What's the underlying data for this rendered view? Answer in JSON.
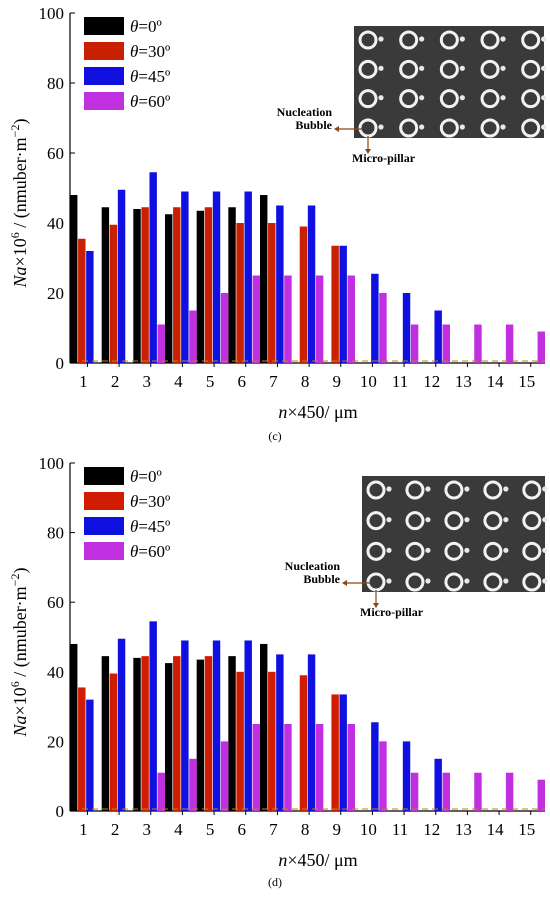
{
  "chart_data": [
    {
      "type": "bar",
      "panel_label": "(c)",
      "xlabel_var": "n",
      "xlabel_rest": "×450/ μm",
      "ylabel_var": "Na",
      "ylabel_rest": "×10",
      "ylabel_exp": "6",
      "ylabel_unit": " / (nmuber·m",
      "ylabel_unit_exp": "−2",
      "ylabel_close": ")",
      "ylim": [
        0,
        100
      ],
      "yticks": [
        0,
        20,
        40,
        60,
        80,
        100
      ],
      "categories": [
        "1",
        "2",
        "3",
        "4",
        "5",
        "6",
        "7",
        "8",
        "9",
        "10",
        "11",
        "12",
        "13",
        "14",
        "15"
      ],
      "series": [
        {
          "name": "θ=0º",
          "theta": "θ",
          "deg": "=0º",
          "color": "#000000",
          "values": [
            48,
            44.5,
            44,
            42.5,
            43.5,
            44.5,
            48,
            null,
            null,
            null,
            null,
            null,
            null,
            null,
            null
          ]
        },
        {
          "name": "θ=30º",
          "theta": "θ",
          "deg": "=30º",
          "color": "#c82000",
          "values": [
            35.5,
            39.5,
            44.5,
            44.5,
            44.5,
            40,
            40,
            39,
            33.5,
            null,
            null,
            null,
            null,
            null,
            null
          ]
        },
        {
          "name": "θ=45º",
          "theta": "θ",
          "deg": "=45º",
          "color": "#1010e0",
          "values": [
            32,
            49.5,
            54.5,
            49,
            49,
            49,
            45,
            45,
            33.5,
            25.5,
            20,
            15,
            null,
            null,
            null
          ]
        },
        {
          "name": "θ=60º",
          "theta": "θ",
          "deg": "=60º",
          "color": "#c030e0",
          "values": [
            null,
            null,
            11,
            15,
            20,
            25,
            25,
            25,
            25,
            20,
            11,
            11,
            11,
            11,
            9
          ]
        }
      ],
      "baseline_style": "dashed",
      "legend_position": "top-left",
      "inset": {
        "label_nucleation_1": "Nucleation",
        "label_nucleation_2": "Bubble",
        "label_pillar": "Micro-pillar"
      }
    },
    {
      "type": "bar",
      "panel_label": "(d)",
      "xlabel_var": "n",
      "xlabel_rest": "×450/ μm",
      "ylabel_var": "Na",
      "ylabel_rest": "×10",
      "ylabel_exp": "6",
      "ylabel_unit": " / (nmuber·m",
      "ylabel_unit_exp": "−2",
      "ylabel_close": ")",
      "ylim": [
        0,
        100
      ],
      "yticks": [
        0,
        20,
        40,
        60,
        80,
        100
      ],
      "categories": [
        "1",
        "2",
        "3",
        "4",
        "5",
        "6",
        "7",
        "8",
        "9",
        "10",
        "11",
        "12",
        "13",
        "14",
        "15"
      ],
      "series": [
        {
          "name": "θ=0º",
          "theta": "θ",
          "deg": "=0º",
          "color": "#000000",
          "values": [
            48,
            44.5,
            44,
            42.5,
            43.5,
            44.5,
            48,
            null,
            null,
            null,
            null,
            null,
            null,
            null,
            null
          ]
        },
        {
          "name": "θ=30º",
          "theta": "θ",
          "deg": "=30º",
          "color": "#d01c00",
          "values": [
            35.5,
            39.5,
            44.5,
            44.5,
            44.5,
            40,
            40,
            39,
            33.5,
            null,
            null,
            null,
            null,
            null,
            null
          ]
        },
        {
          "name": "θ=45º",
          "theta": "θ",
          "deg": "=45º",
          "color": "#1010e0",
          "values": [
            32,
            49.5,
            54.5,
            49,
            49,
            49,
            45,
            45,
            33.5,
            25.5,
            20,
            15,
            null,
            null,
            null
          ]
        },
        {
          "name": "θ=60º",
          "theta": "θ",
          "deg": "=60º",
          "color": "#c030e0",
          "values": [
            null,
            null,
            11,
            15,
            20,
            25,
            25,
            25,
            25,
            20,
            11,
            11,
            11,
            11,
            9
          ]
        }
      ],
      "baseline_style": "dashed",
      "legend_position": "top-left",
      "inset": {
        "label_nucleation_1": "Nucleation",
        "label_nucleation_2": "Bubble",
        "label_pillar": "Micro-pillar"
      }
    }
  ]
}
